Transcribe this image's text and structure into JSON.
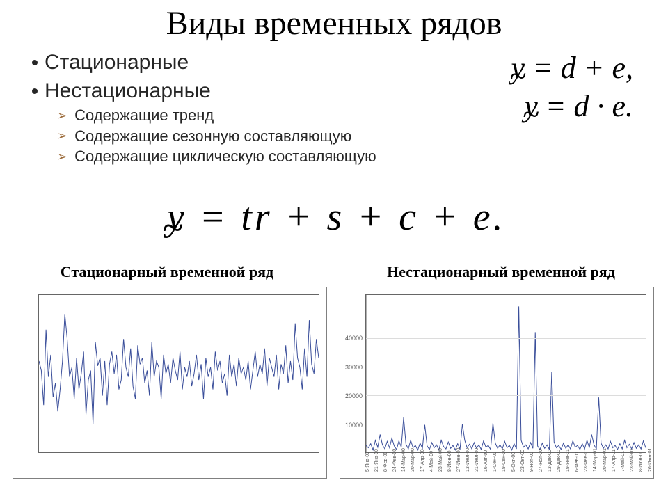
{
  "title": "Виды временных рядов",
  "bullets": {
    "items": [
      {
        "level": 1,
        "text": "Стационарные"
      },
      {
        "level": 1,
        "text": "Нестационарные"
      },
      {
        "level": 2,
        "text": "Содержащие тренд"
      },
      {
        "level": 2,
        "text": "Содержащие сезонную составляющую"
      },
      {
        "level": 2,
        "text": "Содержащие циклическую составляющую"
      }
    ]
  },
  "formulas": {
    "right1": "ỹ = d + e,",
    "right2": "ỹ = d · e.",
    "main": "ỹ = tr + s + c + e."
  },
  "chart_titles": {
    "left": "Стационарный временной ряд",
    "right": "Нестационарный временной ряд"
  },
  "left_chart": {
    "type": "line",
    "line_color": "#3a4e9a",
    "line_width": 1,
    "background": "#ffffff",
    "border_color": "#666666",
    "ylim": [
      0,
      100
    ],
    "xlim": [
      0,
      120
    ],
    "values": [
      58,
      52,
      30,
      78,
      48,
      62,
      35,
      44,
      26,
      40,
      58,
      88,
      72,
      48,
      54,
      34,
      60,
      40,
      50,
      64,
      24,
      46,
      52,
      18,
      70,
      55,
      60,
      36,
      58,
      30,
      56,
      64,
      50,
      62,
      40,
      46,
      72,
      54,
      48,
      66,
      42,
      34,
      68,
      56,
      60,
      44,
      52,
      36,
      70,
      48,
      58,
      54,
      34,
      62,
      50,
      56,
      44,
      60,
      52,
      46,
      64,
      40,
      54,
      48,
      58,
      42,
      50,
      62,
      46,
      56,
      34,
      60,
      48,
      54,
      40,
      64,
      52,
      58,
      44,
      50,
      36,
      62,
      48,
      56,
      42,
      60,
      50,
      54,
      46,
      58,
      40,
      52,
      64,
      48,
      56,
      50,
      66,
      42,
      60,
      54,
      48,
      62,
      40,
      56,
      50,
      68,
      44,
      58,
      46,
      82,
      60,
      54,
      40,
      66,
      48,
      84,
      56,
      50,
      72,
      60
    ]
  },
  "right_chart": {
    "type": "line",
    "line_color": "#3a4e9a",
    "line_width": 1,
    "background": "#ffffff",
    "grid_color": "#dcdcdc",
    "ylim": [
      0,
      55000
    ],
    "ytick_step": 10000,
    "xlim": [
      0,
      120
    ],
    "values": [
      2400,
      1600,
      3000,
      800,
      4200,
      1800,
      6200,
      2600,
      1200,
      3800,
      1600,
      5000,
      2200,
      1000,
      4000,
      1800,
      12200,
      2800,
      1200,
      4200,
      1600,
      2400,
      800,
      3200,
      1400,
      9600,
      2200,
      1000,
      3400,
      1600,
      2600,
      800,
      4200,
      2000,
      1200,
      3600,
      1400,
      2400,
      800,
      3000,
      1200,
      9800,
      4200,
      1600,
      2800,
      1200,
      3400,
      1400,
      2600,
      1000,
      4000,
      1800,
      2400,
      1000,
      10200,
      3200,
      1400,
      2600,
      1200,
      3800,
      1600,
      2400,
      800,
      3000,
      1200,
      51000,
      4200,
      1800,
      2600,
      1200,
      3400,
      1400,
      42000,
      2200,
      1000,
      3200,
      1400,
      2600,
      1000,
      28000,
      3600,
      1600,
      2400,
      1000,
      3200,
      1400,
      2600,
      1200,
      4000,
      1800,
      2400,
      1000,
      3000,
      1200,
      4200,
      1600,
      6200,
      2600,
      1200,
      19200,
      3200,
      1400,
      2600,
      1200,
      3800,
      1600,
      2400,
      1000,
      3000,
      1200,
      4200,
      1600,
      2800,
      1200,
      3400,
      1400,
      2600,
      1200,
      4000,
      1600
    ],
    "x_labels": [
      "5-Янв-00",
      "21-Янв-00",
      "8-Фев-00",
      "24-Фев-00",
      "14-Мар-00",
      "30-Мар-00",
      "17-Апр-00",
      "4-Май-00",
      "23-Май-00",
      "8-Июн-00",
      "27-Июн-00",
      "13-Июл-00",
      "31-Июл-00",
      "16-Авг-00",
      "1-Сен-00",
      "19-Сен-00",
      "5-Окт-00",
      "23-Окт-00",
      "9-Ноя-00",
      "27-Ноя-00",
      "13-Дек-00",
      "29-Дек-00",
      "19-Янв-01",
      "6-Фев-01",
      "23-Фев-01",
      "14-Мар-01",
      "30-Мар-01",
      "17-Апр-01",
      "7-Май-01",
      "23-Май-01",
      "8-Июн-01",
      "26-Июн-01"
    ]
  }
}
